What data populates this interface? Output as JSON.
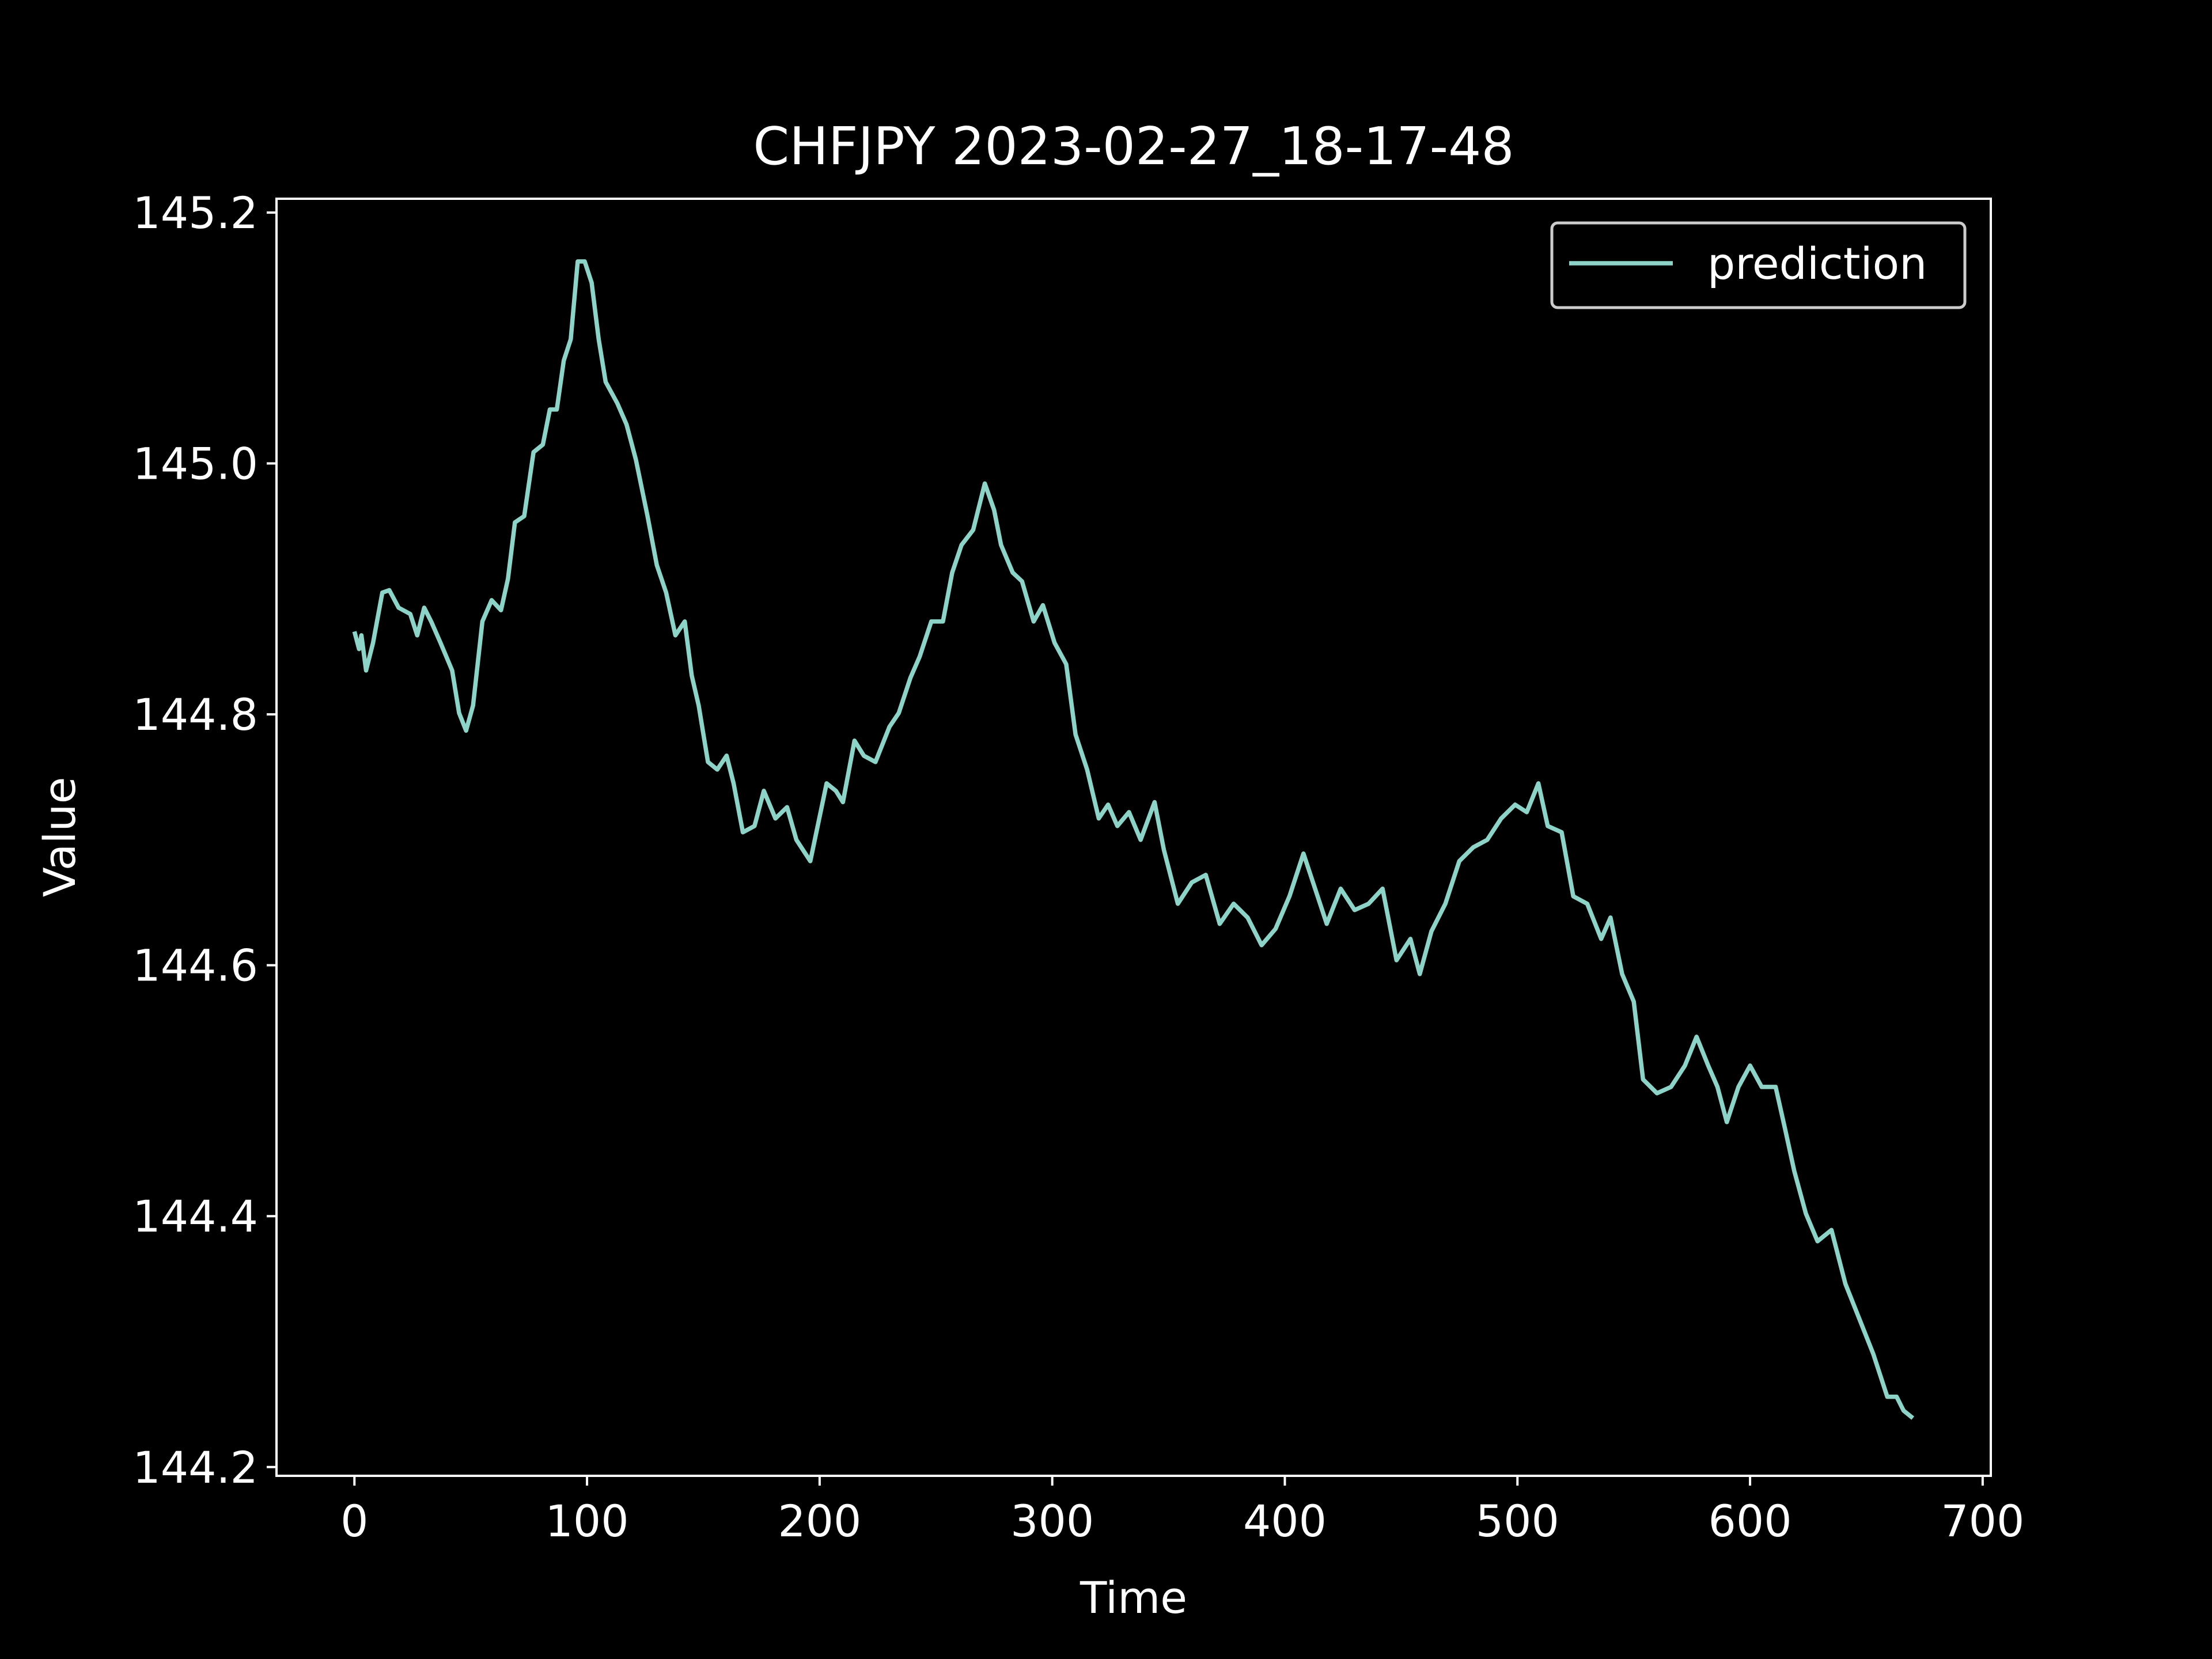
{
  "chart_data": {
    "type": "line",
    "title": "CHFJPY 2023-02-27_18-17-48",
    "xlabel": "Time",
    "ylabel": "Value",
    "x": [
      0,
      2,
      3,
      5,
      8,
      12,
      15,
      19,
      24,
      27,
      30,
      33,
      37,
      42,
      45,
      48,
      51,
      55,
      59,
      63,
      66,
      69,
      73,
      77,
      81,
      84,
      87,
      90,
      93,
      96,
      99,
      102,
      105,
      108,
      113,
      117,
      121,
      126,
      130,
      134,
      138,
      142,
      145,
      148,
      152,
      156,
      160,
      163,
      167,
      172,
      176,
      181,
      186,
      190,
      196,
      203,
      207,
      210,
      215,
      219,
      224,
      230,
      234,
      239,
      243,
      248,
      253,
      257,
      261,
      266,
      271,
      275,
      278,
      283,
      287,
      292,
      296,
      301,
      306,
      310,
      315,
      320,
      324,
      328,
      333,
      338,
      344,
      348,
      354,
      360,
      366,
      372,
      378,
      384,
      390,
      396,
      402,
      408,
      413,
      418,
      424,
      430,
      436,
      442,
      448,
      454,
      458,
      463,
      469,
      475,
      481,
      487,
      493,
      499,
      504,
      509,
      513,
      519,
      524,
      530,
      536,
      540,
      545,
      550,
      554,
      560,
      566,
      572,
      577,
      582,
      586,
      590,
      595,
      600,
      605,
      611,
      615,
      619,
      624,
      629,
      635,
      641,
      647,
      653,
      659,
      663,
      666,
      670
    ],
    "series": [
      {
        "name": "prediction",
        "color": "#8dd3c7",
        "values": [
          144.866,
          144.852,
          144.863,
          144.835,
          144.857,
          144.897,
          144.899,
          144.885,
          144.88,
          144.863,
          144.885,
          144.874,
          144.857,
          144.835,
          144.801,
          144.787,
          144.807,
          144.874,
          144.891,
          144.883,
          144.908,
          144.953,
          144.958,
          145.009,
          145.015,
          145.043,
          145.043,
          145.082,
          145.099,
          145.161,
          145.161,
          145.144,
          145.099,
          145.065,
          145.048,
          145.031,
          145.003,
          144.958,
          144.919,
          144.897,
          144.863,
          144.874,
          144.831,
          144.807,
          144.762,
          144.756,
          144.767,
          144.745,
          144.706,
          144.711,
          144.739,
          144.717,
          144.726,
          144.7,
          144.683,
          144.745,
          144.739,
          144.73,
          144.779,
          144.767,
          144.762,
          144.79,
          144.801,
          144.829,
          144.846,
          144.874,
          144.874,
          144.913,
          144.935,
          144.947,
          144.984,
          144.963,
          144.935,
          144.913,
          144.906,
          144.874,
          144.887,
          144.857,
          144.84,
          144.784,
          144.756,
          144.717,
          144.728,
          144.711,
          144.722,
          144.7,
          144.73,
          144.692,
          144.649,
          144.666,
          144.672,
          144.633,
          144.649,
          144.638,
          144.616,
          144.629,
          144.655,
          144.689,
          144.661,
          144.633,
          144.661,
          144.644,
          144.649,
          144.661,
          144.604,
          144.621,
          144.593,
          144.627,
          144.649,
          144.683,
          144.694,
          144.7,
          144.717,
          144.728,
          144.722,
          144.745,
          144.711,
          144.706,
          144.655,
          144.649,
          144.621,
          144.638,
          144.593,
          144.571,
          144.509,
          144.498,
          144.503,
          144.52,
          144.543,
          144.52,
          144.503,
          144.475,
          144.503,
          144.52,
          144.503,
          144.503,
          144.47,
          144.436,
          144.402,
          144.38,
          144.389,
          144.346,
          144.318,
          144.29,
          144.256,
          144.256,
          144.245,
          144.239
        ]
      }
    ],
    "xlim": [
      -33.5,
      703.5
    ],
    "ylim": [
      144.193,
      145.211
    ],
    "xticks": [
      0,
      100,
      200,
      300,
      400,
      500,
      600,
      700
    ],
    "yticks": [
      144.2,
      144.4,
      144.6,
      144.8,
      {
        "value": 145,
        "label": "145.0"
      },
      145.2
    ],
    "legend": "upper right"
  }
}
